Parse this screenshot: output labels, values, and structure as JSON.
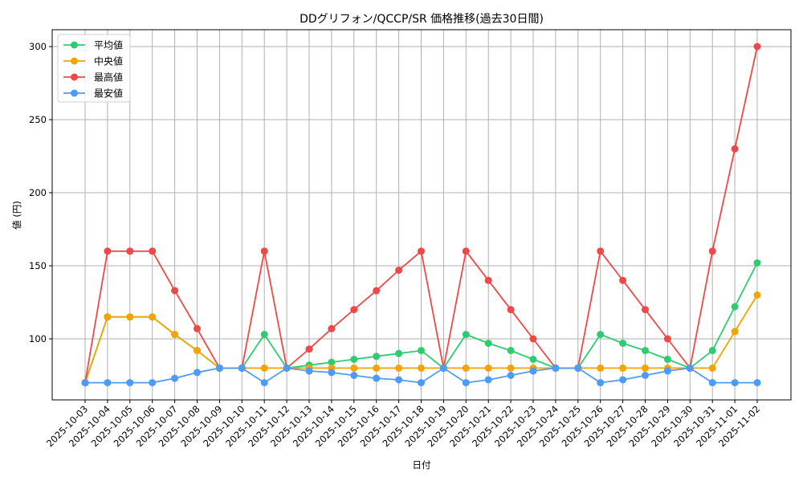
{
  "chart_data": {
    "type": "line",
    "title": "DDグリフォン/QCCP/SR 価格推移(過去30日間)",
    "xlabel": "日付",
    "ylabel": "値 (円)",
    "ylim": [
      60,
      312
    ],
    "yticks": [
      100,
      150,
      200,
      250,
      300
    ],
    "grid": true,
    "legend_position": "upper left",
    "x": [
      "2025-10-03",
      "2025-10-04",
      "2025-10-05",
      "2025-10-06",
      "2025-10-07",
      "2025-10-08",
      "2025-10-09",
      "2025-10-10",
      "2025-10-11",
      "2025-10-12",
      "2025-10-13",
      "2025-10-14",
      "2025-10-15",
      "2025-10-16",
      "2025-10-17",
      "2025-10-18",
      "2025-10-19",
      "2025-10-20",
      "2025-10-21",
      "2025-10-22",
      "2025-10-23",
      "2025-10-24",
      "2025-10-25",
      "2025-10-26",
      "2025-10-27",
      "2025-10-28",
      "2025-10-29",
      "2025-10-30",
      "2025-10-31",
      "2025-11-01",
      "2025-11-02"
    ],
    "series": [
      {
        "name": "平均値",
        "color": "#2ecc71",
        "values": [
          70,
          115,
          115,
          115,
          103,
          92,
          80,
          80,
          103,
          80,
          82,
          84,
          86,
          88,
          90,
          92,
          80,
          103,
          97,
          92,
          86,
          80,
          80,
          103,
          97,
          92,
          86,
          80,
          92,
          122,
          152
        ]
      },
      {
        "name": "中央値",
        "color": "#f5a300",
        "values": [
          70,
          115,
          115,
          115,
          103,
          92,
          80,
          80,
          80,
          80,
          80,
          80,
          80,
          80,
          80,
          80,
          80,
          80,
          80,
          80,
          80,
          80,
          80,
          80,
          80,
          80,
          80,
          80,
          80,
          105,
          130
        ]
      },
      {
        "name": "最高値",
        "color": "#f04848",
        "values": [
          70,
          160,
          160,
          160,
          133,
          107,
          80,
          80,
          160,
          80,
          93,
          107,
          120,
          133,
          147,
          160,
          80,
          160,
          140,
          120,
          100,
          80,
          80,
          160,
          140,
          120,
          100,
          80,
          160,
          230,
          300
        ]
      },
      {
        "name": "最安値",
        "color": "#4d9bf5",
        "values": [
          70,
          70,
          70,
          70,
          73,
          77,
          80,
          80,
          70,
          80,
          78,
          77,
          75,
          73,
          72,
          70,
          80,
          70,
          72,
          75,
          78,
          80,
          80,
          70,
          72,
          75,
          78,
          80,
          70,
          70,
          70
        ]
      }
    ]
  }
}
